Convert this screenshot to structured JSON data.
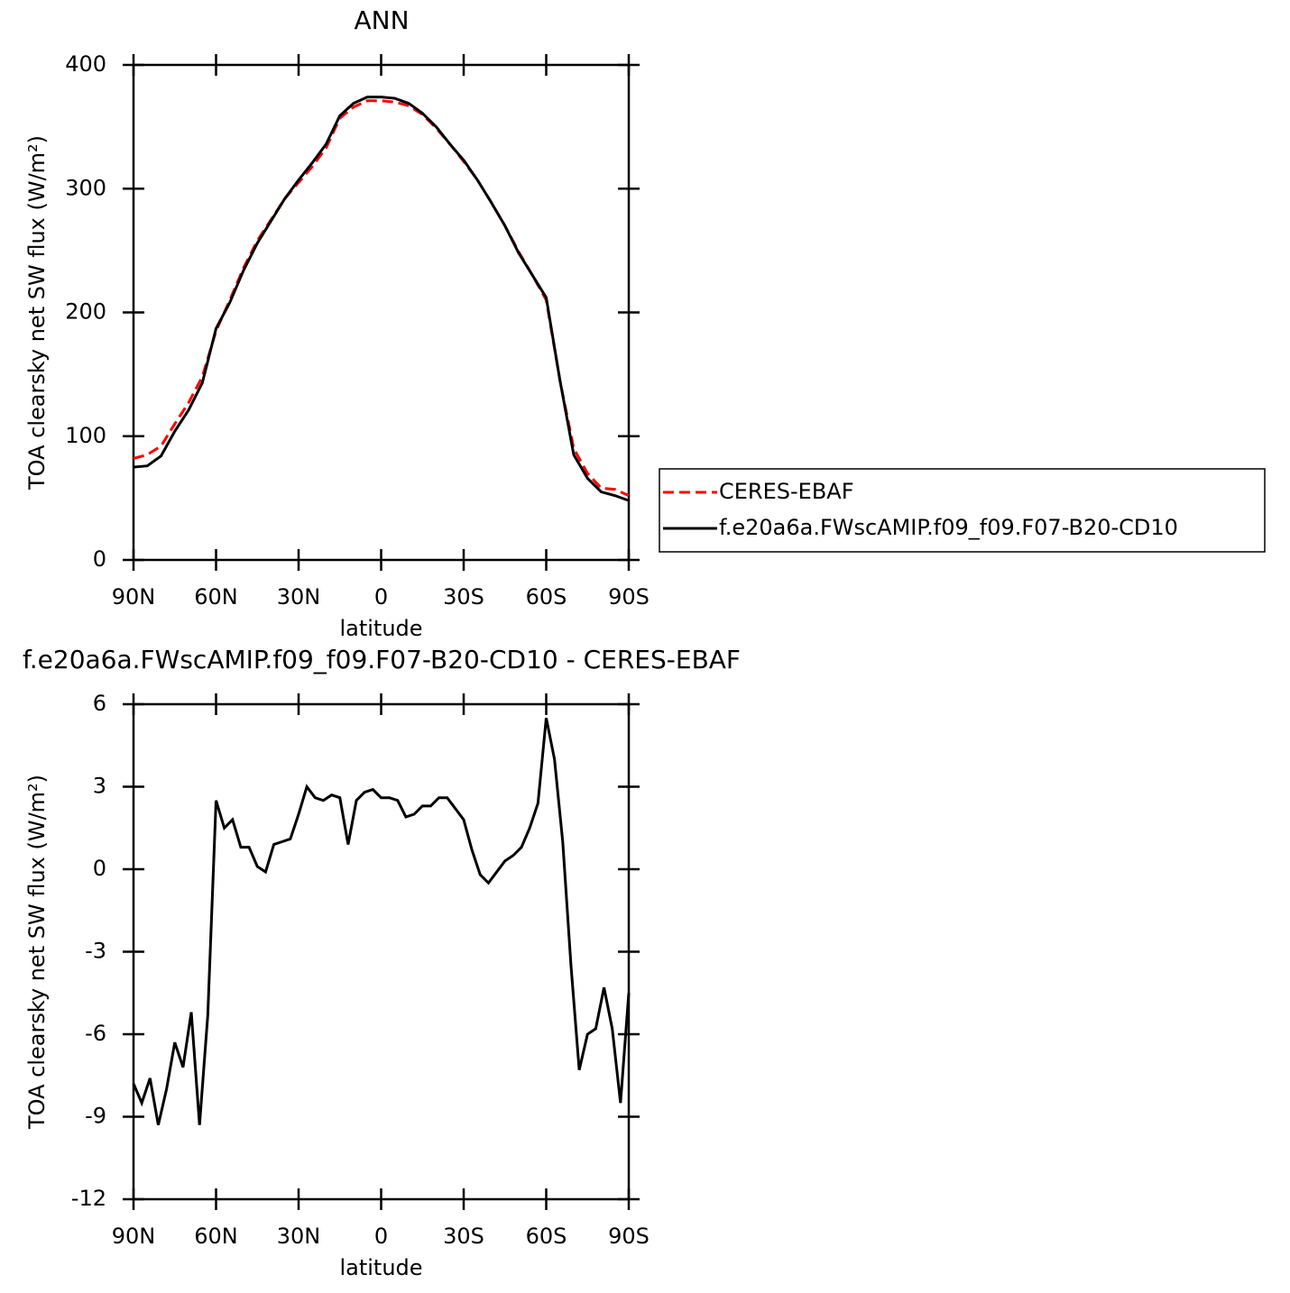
{
  "chart_data": [
    {
      "type": "line",
      "title": "ANN",
      "x_label": "latitude",
      "y_label": "TOA clearsky net SW flux (W/m²)",
      "x": [
        90,
        85,
        80,
        75,
        70,
        65,
        60,
        55,
        50,
        45,
        40,
        35,
        30,
        25,
        20,
        15,
        10,
        5,
        0,
        -5,
        -10,
        -15,
        -20,
        -25,
        -30,
        -35,
        -40,
        -45,
        -50,
        -55,
        -60,
        -65,
        -70,
        -75,
        -80,
        -85,
        -90
      ],
      "xlim": [
        90,
        -90
      ],
      "xticks": [
        {
          "value": 90,
          "label": "90N"
        },
        {
          "value": 60,
          "label": "60N"
        },
        {
          "value": 30,
          "label": "30N"
        },
        0,
        {
          "value": -30,
          "label": "30S"
        },
        {
          "value": -60,
          "label": "60S"
        },
        {
          "value": -90,
          "label": "90S"
        }
      ],
      "ylim": [
        0,
        400
      ],
      "yticks": [
        0,
        100,
        200,
        300,
        400
      ],
      "legend": "right",
      "series": [
        {
          "name": "CERES-EBAF",
          "color": "#ff0000",
          "linestyle": "dashed",
          "values": [
            82,
            85,
            92,
            110,
            127,
            148,
            185,
            210,
            236,
            258,
            275,
            292,
            305,
            318,
            333,
            357,
            366,
            371,
            371,
            370,
            367,
            360,
            349,
            336,
            322,
            307,
            289,
            270,
            249,
            230,
            210,
            145,
            90,
            70,
            58,
            57,
            52
          ]
        },
        {
          "name": "f.e20a6a.FWscAMIP.f09_f09.F07-B20-CD10",
          "color": "#000000",
          "linestyle": "solid",
          "values": [
            75,
            76,
            84,
            104,
            121,
            143,
            187,
            208,
            234,
            256,
            274,
            292,
            307,
            321,
            336,
            359,
            369,
            374,
            374,
            373,
            369,
            361,
            350,
            336,
            323,
            307,
            289,
            270,
            248,
            230,
            212,
            145,
            85,
            66,
            55,
            52,
            48
          ]
        }
      ]
    },
    {
      "type": "line",
      "title": "f.e20a6a.FWscAMIP.f09_f09.F07-B20-CD10 - CERES-EBAF",
      "x_label": "latitude",
      "y_label": "TOA clearsky net SW flux (W/m²)",
      "x": [
        90,
        87,
        84,
        81,
        78,
        75,
        72,
        69,
        66,
        63,
        60,
        57,
        54,
        51,
        48,
        45,
        42,
        39,
        36,
        33,
        30,
        27,
        24,
        21,
        18,
        15,
        12,
        9,
        6,
        3,
        0,
        -3,
        -6,
        -9,
        -12,
        -15,
        -18,
        -21,
        -24,
        -27,
        -30,
        -33,
        -36,
        -39,
        -42,
        -45,
        -48,
        -51,
        -54,
        -57,
        -60,
        -63,
        -66,
        -69,
        -72,
        -75,
        -78,
        -81,
        -84,
        -87,
        -90
      ],
      "xlim": [
        90,
        -90
      ],
      "xticks": [
        {
          "value": 90,
          "label": "90N"
        },
        {
          "value": 60,
          "label": "60N"
        },
        {
          "value": 30,
          "label": "30N"
        },
        0,
        {
          "value": -30,
          "label": "30S"
        },
        {
          "value": -60,
          "label": "60S"
        },
        {
          "value": -90,
          "label": "90S"
        }
      ],
      "ylim": [
        -12,
        6
      ],
      "yticks": [
        -12,
        -9,
        -6,
        -3,
        0,
        3,
        6
      ],
      "series": [
        {
          "color": "#000000",
          "linestyle": "solid",
          "values": [
            -7.8,
            -8.5,
            -7.6,
            -9.3,
            -8.0,
            -6.3,
            -7.2,
            -5.2,
            -9.3,
            -5.3,
            2.5,
            1.5,
            1.8,
            0.8,
            0.8,
            0.1,
            -0.1,
            0.9,
            1.0,
            1.1,
            2.0,
            3.0,
            2.6,
            2.5,
            2.7,
            2.6,
            0.9,
            2.5,
            2.8,
            2.9,
            2.6,
            2.6,
            2.5,
            1.9,
            2.0,
            2.3,
            2.3,
            2.6,
            2.6,
            2.2,
            1.8,
            0.7,
            -0.2,
            -0.5,
            -0.1,
            0.3,
            0.5,
            0.8,
            1.5,
            2.4,
            5.5,
            4.0,
            1.0,
            -3.5,
            -7.3,
            -6.0,
            -5.8,
            -4.3,
            -5.8,
            -8.5,
            -4.5
          ]
        }
      ]
    }
  ]
}
